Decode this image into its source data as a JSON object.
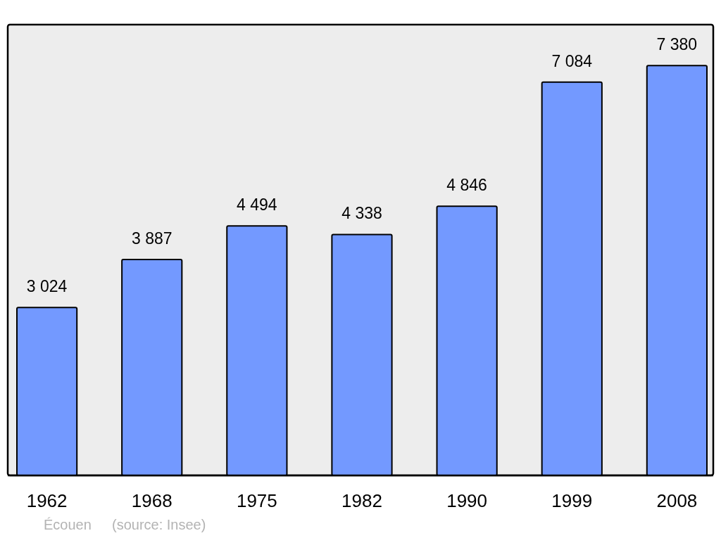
{
  "chart_data": {
    "type": "bar",
    "categories": [
      "1962",
      "1968",
      "1975",
      "1982",
      "1990",
      "1999",
      "2008"
    ],
    "values": [
      3024,
      3887,
      4494,
      4338,
      4846,
      7084,
      7380
    ],
    "value_labels": [
      "3 024",
      "3 887",
      "4 494",
      "4 338",
      "4 846",
      "7 084",
      "7 380"
    ],
    "color": "#7399ff",
    "annotations": [
      "Écouen",
      "(source: Insee)"
    ]
  }
}
